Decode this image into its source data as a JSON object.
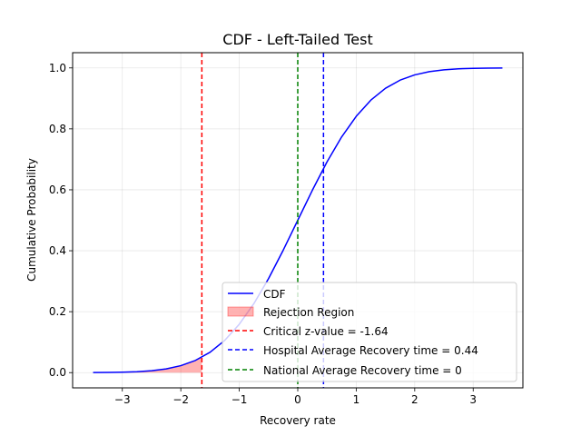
{
  "chart_data": {
    "type": "line",
    "title": "CDF - Left-Tailed Test",
    "xlabel": "Recovery rate",
    "ylabel": "Cumulative Probability",
    "xlim": [
      -3.85,
      3.85
    ],
    "ylim": [
      -0.05,
      1.05
    ],
    "x_ticks": [
      -3,
      -2,
      -1,
      0,
      1,
      2,
      3
    ],
    "y_ticks": [
      0.0,
      0.2,
      0.4,
      0.6,
      0.8,
      1.0
    ],
    "x_tick_labels": [
      "−3",
      "−2",
      "−1",
      "0",
      "1",
      "2",
      "3"
    ],
    "y_tick_labels": [
      "0.0",
      "0.2",
      "0.4",
      "0.6",
      "0.8",
      "1.0"
    ],
    "grid": true,
    "legend_position": "lower-right",
    "series": [
      {
        "name": "CDF",
        "color": "#0000ff",
        "x": [
          -3.5,
          -3.25,
          -3.0,
          -2.75,
          -2.5,
          -2.25,
          -2.0,
          -1.75,
          -1.5,
          -1.25,
          -1.0,
          -0.75,
          -0.5,
          -0.25,
          0.0,
          0.25,
          0.5,
          0.75,
          1.0,
          1.25,
          1.5,
          1.75,
          2.0,
          2.25,
          2.5,
          2.75,
          3.0,
          3.25,
          3.5
        ],
        "y": [
          0.0002,
          0.0006,
          0.0013,
          0.003,
          0.0062,
          0.0122,
          0.0228,
          0.0401,
          0.0668,
          0.1056,
          0.1587,
          0.2266,
          0.3085,
          0.4013,
          0.5,
          0.5987,
          0.6915,
          0.7734,
          0.8413,
          0.8944,
          0.9332,
          0.9599,
          0.9772,
          0.9878,
          0.9938,
          0.997,
          0.9987,
          0.9994,
          0.9998
        ]
      }
    ],
    "rejection_region": {
      "name": "Rejection Region",
      "color": "#ff0000",
      "x": [
        -3.5,
        -3.25,
        -3.0,
        -2.75,
        -2.5,
        -2.25,
        -2.0,
        -1.75,
        -1.64
      ],
      "y": [
        0.0002,
        0.0006,
        0.0013,
        0.003,
        0.0062,
        0.0122,
        0.0228,
        0.0401,
        0.0505
      ]
    },
    "vlines": [
      {
        "name": "Critical z-value = -1.64",
        "x": -1.64,
        "color": "#ff0000"
      },
      {
        "name": "Hospital Average Recovery time = 0.44",
        "x": 0.44,
        "color": "#0000ff"
      },
      {
        "name": "National Average Recovery time = 0",
        "x": 0,
        "color": "#008000"
      }
    ]
  }
}
